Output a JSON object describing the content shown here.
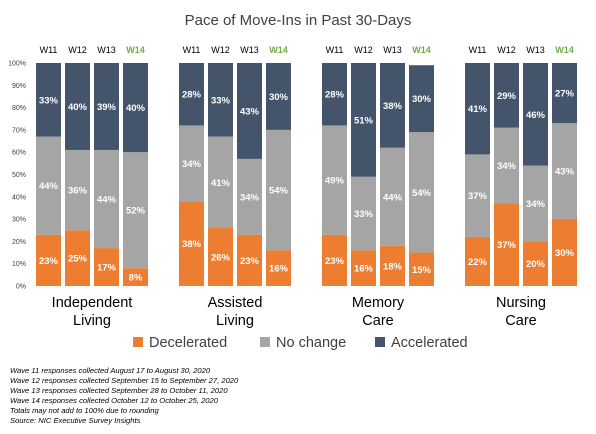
{
  "chart_data": {
    "type": "bar",
    "stacked": true,
    "percent": true,
    "title": "Pace of Move-Ins in Past 30-Days",
    "ylim": [
      0,
      100
    ],
    "yticks": [
      "0%",
      "10%",
      "20%",
      "30%",
      "40%",
      "50%",
      "60%",
      "70%",
      "80%",
      "90%",
      "100%"
    ],
    "waves": [
      "W11",
      "W12",
      "W13",
      "W14"
    ],
    "highlight_wave": "W14",
    "groups": [
      {
        "name_line1": "Independent",
        "name_line2": "Living",
        "bars": [
          {
            "wave": "W11",
            "decelerated": 23,
            "no_change": 44,
            "accelerated": 33
          },
          {
            "wave": "W12",
            "decelerated": 25,
            "no_change": 36,
            "accelerated": 40
          },
          {
            "wave": "W13",
            "decelerated": 17,
            "no_change": 44,
            "accelerated": 39
          },
          {
            "wave": "W14",
            "decelerated": 8,
            "no_change": 52,
            "accelerated": 40
          }
        ]
      },
      {
        "name_line1": "Assisted",
        "name_line2": "Living",
        "bars": [
          {
            "wave": "W11",
            "decelerated": 38,
            "no_change": 34,
            "accelerated": 28
          },
          {
            "wave": "W12",
            "decelerated": 26,
            "no_change": 41,
            "accelerated": 33
          },
          {
            "wave": "W13",
            "decelerated": 23,
            "no_change": 34,
            "accelerated": 43
          },
          {
            "wave": "W14",
            "decelerated": 16,
            "no_change": 54,
            "accelerated": 30
          }
        ]
      },
      {
        "name_line1": "Memory",
        "name_line2": "Care",
        "bars": [
          {
            "wave": "W11",
            "decelerated": 23,
            "no_change": 49,
            "accelerated": 28
          },
          {
            "wave": "W12",
            "decelerated": 16,
            "no_change": 33,
            "accelerated": 51
          },
          {
            "wave": "W13",
            "decelerated": 18,
            "no_change": 44,
            "accelerated": 38
          },
          {
            "wave": "W14",
            "decelerated": 15,
            "no_change": 54,
            "accelerated": 30
          }
        ]
      },
      {
        "name_line1": "Nursing",
        "name_line2": "Care",
        "bars": [
          {
            "wave": "W11",
            "decelerated": 22,
            "no_change": 37,
            "accelerated": 41
          },
          {
            "wave": "W12",
            "decelerated": 37,
            "no_change": 34,
            "accelerated": 29
          },
          {
            "wave": "W13",
            "decelerated": 20,
            "no_change": 34,
            "accelerated": 46
          },
          {
            "wave": "W14",
            "decelerated": 30,
            "no_change": 43,
            "accelerated": 27
          }
        ]
      }
    ],
    "series": [
      {
        "key": "decelerated",
        "name": "Decelerated",
        "color": "#ed7d31"
      },
      {
        "key": "no_change",
        "name": "No change",
        "color": "#a5a5a5"
      },
      {
        "key": "accelerated",
        "name": "Accelerated",
        "color": "#44546a"
      }
    ],
    "highlight_color": "#70ad47",
    "legend_position": "bottom",
    "grid": false
  },
  "notes": [
    "Wave 11 responses collected August 17 to August 30, 2020",
    "Wave 12 responses collected September 15 to September 27, 2020",
    "Wave 13 responses collected September 28 to October 11, 2020",
    "Wave 14 responses collected October 12 to October 25, 2020",
    "Totals may not add to 100% due to rounding",
    "Source: NIC Executive Survey Insights"
  ]
}
